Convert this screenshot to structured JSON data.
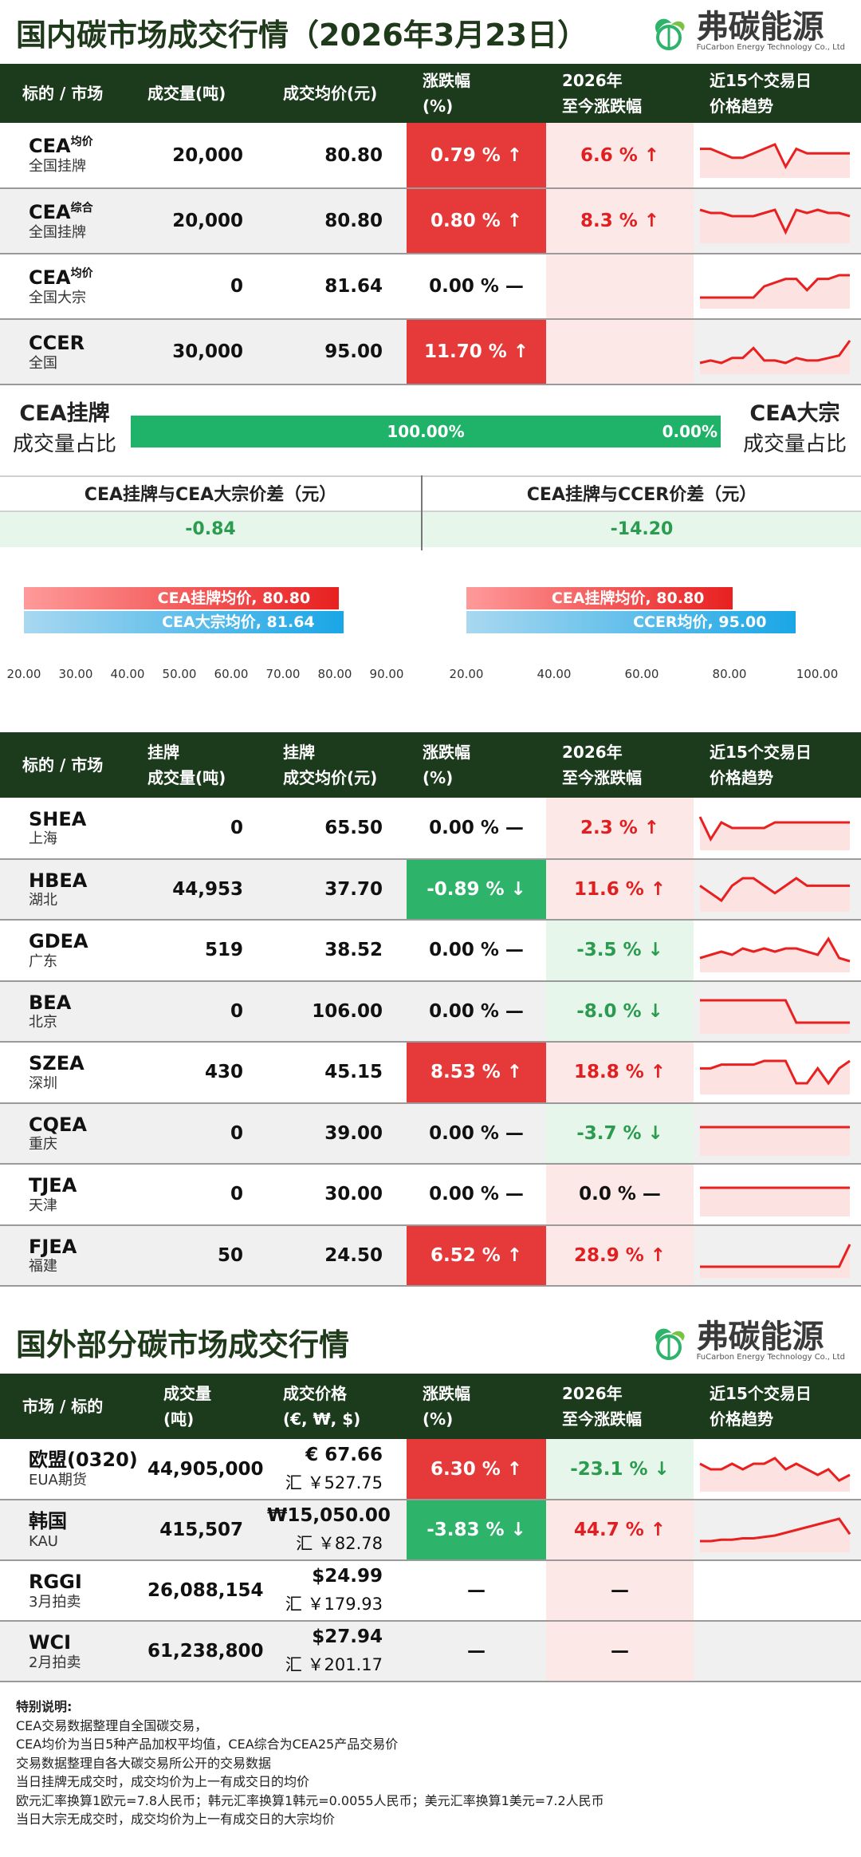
{
  "domestic": {
    "title": "国内碳市场成交行情（2026年3月23日）",
    "logo": {
      "cn": "弗碳能源",
      "en": "FuCarbon Energy Technology Co., Ltd"
    },
    "headers": [
      "标的 / 市场",
      "成交量(吨)",
      "成交均价(元)",
      "涨跌幅\n(%)",
      "2026年\n至今涨跌幅",
      "近15个交易日\n价格趋势"
    ],
    "rows": [
      {
        "code": "CEA",
        "sup": "均价",
        "sub": "全国挂牌",
        "volume": "20,000",
        "price": "80.80",
        "change": "0.79 % ↑",
        "change_dir": "up",
        "ytd": "6.6 % ↑",
        "ytd_dir": "up",
        "trend": [
          62,
          62,
          61,
          60,
          60,
          61,
          62,
          63,
          58,
          62,
          61,
          61,
          61,
          61,
          61
        ]
      },
      {
        "code": "CEA",
        "sup": "综合",
        "sub": "全国挂牌",
        "volume": "20,000",
        "price": "80.80",
        "change": "0.80 % ↑",
        "change_dir": "up",
        "ytd": "8.3 % ↑",
        "ytd_dir": "up",
        "trend": [
          62,
          61,
          61,
          60,
          60,
          60,
          61,
          62,
          55,
          62,
          61,
          62,
          61,
          61,
          60
        ]
      },
      {
        "code": "CEA",
        "sup": "均价",
        "sub": "全国大宗",
        "volume": "0",
        "price": "81.64",
        "change": "0.00 % —",
        "change_dir": "flat",
        "ytd": "",
        "ytd_dir": "none",
        "trend": [
          50,
          50,
          50,
          50,
          50,
          50,
          53,
          54,
          55,
          55,
          52,
          55,
          55,
          56,
          56
        ]
      },
      {
        "code": "CCER",
        "sup": "",
        "sub": "全国",
        "volume": "30,000",
        "price": "95.00",
        "change": "11.70 % ↑",
        "change_dir": "up",
        "ytd": "",
        "ytd_dir": "none",
        "trend": [
          55,
          56,
          55,
          57,
          57,
          61,
          56,
          56,
          55,
          57,
          56,
          56,
          57,
          58,
          64
        ]
      }
    ],
    "share": {
      "left_title": "CEA挂牌",
      "left_sub": "成交量占比",
      "right_title": "CEA大宗",
      "right_sub": "成交量占比",
      "left_pct": "100.00%",
      "right_pct": "0.00%"
    },
    "diffs": [
      {
        "title": "CEA挂牌与CEA大宗价差（元）",
        "value": "-0.84"
      },
      {
        "title": "CEA挂牌与CCER价差（元）",
        "value": "-14.20"
      }
    ],
    "compare_left": {
      "bars": [
        {
          "label": "CEA挂牌均价, 80.80",
          "value": 80.8
        },
        {
          "label": "CEA大宗均价, 81.64",
          "value": 81.64
        }
      ],
      "ticks": [
        "20.00",
        "30.00",
        "40.00",
        "50.00",
        "60.00",
        "70.00",
        "80.00",
        "90.00"
      ],
      "xlim": [
        20,
        90
      ]
    },
    "compare_right": {
      "bars": [
        {
          "label": "CEA挂牌均价, 80.80",
          "value": 80.8
        },
        {
          "label": "CCER均价, 95.00",
          "value": 95.0
        }
      ],
      "ticks": [
        "20.00",
        "40.00",
        "60.00",
        "80.00",
        "100.00"
      ],
      "xlim": [
        20,
        100
      ]
    }
  },
  "regional": {
    "headers": [
      "标的 / 市场",
      "挂牌\n成交量(吨)",
      "挂牌\n成交均价(元)",
      "涨跌幅\n(%)",
      "2026年\n至今涨跌幅",
      "近15个交易日\n价格趋势"
    ],
    "rows": [
      {
        "code": "SHEA",
        "sub": "上海",
        "volume": "0",
        "price": "65.50",
        "change": "0.00 % —",
        "change_dir": "flat",
        "ytd": "2.3 % ↑",
        "ytd_dir": "up",
        "trend": [
          70,
          62,
          68,
          66,
          66,
          66,
          66,
          68,
          68,
          68,
          68,
          68,
          68,
          68,
          68
        ]
      },
      {
        "code": "HBEA",
        "sub": "湖北",
        "volume": "44,953",
        "price": "37.70",
        "change": "-0.89 % ↓",
        "change_dir": "down",
        "ytd": "11.6 % ↑",
        "ytd_dir": "up",
        "trend": [
          55,
          54,
          53,
          55,
          56,
          56,
          55,
          54,
          55,
          56,
          55,
          55,
          55,
          55,
          55
        ]
      },
      {
        "code": "GDEA",
        "sub": "广东",
        "volume": "519",
        "price": "38.52",
        "change": "0.00 % —",
        "change_dir": "flat",
        "ytd": "-3.5 % ↓",
        "ytd_dir": "down",
        "trend": [
          50,
          51,
          52,
          51,
          53,
          52,
          53,
          52,
          53,
          53,
          52,
          51,
          56,
          50,
          49
        ]
      },
      {
        "code": "BEA",
        "sub": "北京",
        "volume": "0",
        "price": "106.00",
        "change": "0.00 % —",
        "change_dir": "flat",
        "ytd": "-8.0 % ↓",
        "ytd_dir": "down",
        "trend": [
          110,
          110,
          110,
          110,
          110,
          110,
          110,
          110,
          110,
          100,
          100,
          100,
          100,
          100,
          100
        ]
      },
      {
        "code": "SZEA",
        "sub": "深圳",
        "volume": "430",
        "price": "45.15",
        "change": "8.53 % ↑",
        "change_dir": "up",
        "ytd": "18.8 % ↑",
        "ytd_dir": "up",
        "trend": [
          44,
          44,
          45,
          45,
          45,
          45,
          46,
          46,
          46,
          40,
          40,
          44,
          40,
          44,
          46
        ]
      },
      {
        "code": "CQEA",
        "sub": "重庆",
        "volume": "0",
        "price": "39.00",
        "change": "0.00 % —",
        "change_dir": "flat",
        "ytd": "-3.7 % ↓",
        "ytd_dir": "down",
        "trend": [
          39,
          39,
          39,
          39,
          39,
          39,
          39,
          39,
          39,
          39,
          39,
          39,
          39,
          39,
          39
        ]
      },
      {
        "code": "TJEA",
        "sub": "天津",
        "volume": "0",
        "price": "30.00",
        "change": "0.00 % —",
        "change_dir": "flat",
        "ytd": "0.0 % —",
        "ytd_dir": "none",
        "trend": [
          30,
          30,
          30,
          30,
          30,
          30,
          30,
          30,
          30,
          30,
          30,
          30,
          30,
          30,
          30
        ]
      },
      {
        "code": "FJEA",
        "sub": "福建",
        "volume": "50",
        "price": "24.50",
        "change": "6.52 % ↑",
        "change_dir": "up",
        "ytd": "28.9 % ↑",
        "ytd_dir": "up",
        "trend": [
          23,
          23,
          23,
          23,
          23,
          23,
          23,
          23,
          23,
          23,
          23,
          23,
          23,
          23,
          24.5
        ]
      }
    ]
  },
  "international": {
    "title": "国外部分碳市场成交行情",
    "headers": [
      "市场 / 标的",
      "成交量\n(吨)",
      "成交价格\n(€, ₩, $)",
      "涨跌幅\n(%)",
      "2026年\n至今涨跌幅",
      "近15个交易日\n价格趋势"
    ],
    "rows": [
      {
        "code": "欧盟(0320)",
        "sub": "EUA期货",
        "volume": "44,905,000",
        "price": "€ 67.66",
        "price_cny": "汇 ￥527.75",
        "change": "6.30 % ↑",
        "change_dir": "up",
        "ytd": "-23.1 % ↓",
        "ytd_dir": "down",
        "trend": [
          70,
          69,
          69,
          70,
          69,
          70,
          70,
          71,
          69,
          70,
          69,
          68,
          69,
          67,
          68
        ]
      },
      {
        "code": "韩国",
        "sub": "KAU",
        "volume": "415,507",
        "price": "₩15,050.00",
        "price_cny": "汇 ￥82.78",
        "change": "-3.83 % ↓",
        "change_dir": "down",
        "ytd": "44.7 % ↑",
        "ytd_dir": "up",
        "trend": [
          14800,
          14800,
          14850,
          14850,
          14900,
          14900,
          14950,
          15000,
          15100,
          15200,
          15300,
          15400,
          15500,
          15600,
          15050
        ]
      },
      {
        "code": "RGGI",
        "sub": "3月拍卖",
        "volume": "26,088,154",
        "price": "$24.99",
        "price_cny": "汇 ￥179.93",
        "change": "—",
        "change_dir": "flat",
        "ytd": "—",
        "ytd_dir": "none",
        "trend": []
      },
      {
        "code": "WCI",
        "sub": "2月拍卖",
        "volume": "61,238,800",
        "price": "$27.94",
        "price_cny": "汇 ￥201.17",
        "change": "—",
        "change_dir": "flat",
        "ytd": "—",
        "ytd_dir": "none",
        "trend": []
      }
    ]
  },
  "notes": {
    "title": "特别说明:",
    "lines": [
      "CEA交易数据整理自全国碳交易，",
      "CEA均价为当日5种产品加权平均值，CEA综合为CEA25产品交易价",
      "交易数据整理自各大碳交易所公开的交易数据",
      "当日挂牌无成交时，成交均价为上一有成交日的均价",
      "欧元汇率换算1欧元=7.8人民币；韩元汇率换算1韩元=0.0055人民币；美元汇率换算1美元=7.2人民币",
      "当日大宗无成交时，成交均价为上一有成交日的大宗均价"
    ]
  },
  "colors": {
    "header_bg": "#1b3b1c",
    "up": "#e63a3a",
    "down": "#2eb36b",
    "trend_line": "#e82020"
  }
}
